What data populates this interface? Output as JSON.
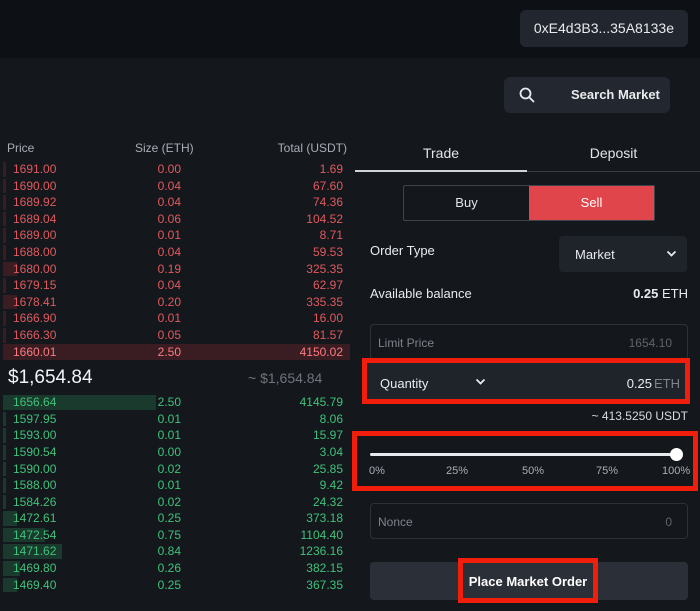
{
  "header": {
    "wallet_address": "0xE4d3B3...35A8133e"
  },
  "search": {
    "label": "Search Market",
    "icon": "search-icon"
  },
  "orderbook": {
    "columns": {
      "price": "Price",
      "size": "Size (ETH)",
      "total": "Total (USDT)"
    },
    "asks": [
      {
        "price": "1691.00",
        "size": "0.00",
        "total": "1.69",
        "depth": 0.01
      },
      {
        "price": "1690.00",
        "size": "0.04",
        "total": "67.60",
        "depth": 0.01
      },
      {
        "price": "1689.92",
        "size": "0.04",
        "total": "74.36",
        "depth": 0.01
      },
      {
        "price": "1689.04",
        "size": "0.06",
        "total": "104.52",
        "depth": 0.01
      },
      {
        "price": "1689.00",
        "size": "0.01",
        "total": "8.71",
        "depth": 0.01
      },
      {
        "price": "1688.00",
        "size": "0.04",
        "total": "59.53",
        "depth": 0.01
      },
      {
        "price": "1680.00",
        "size": "0.19",
        "total": "325.35",
        "depth": 0.04
      },
      {
        "price": "1679.15",
        "size": "0.04",
        "total": "62.97",
        "depth": 0.01
      },
      {
        "price": "1678.41",
        "size": "0.20",
        "total": "335.35",
        "depth": 0.04
      },
      {
        "price": "1666.90",
        "size": "0.01",
        "total": "16.00",
        "depth": 0.01
      },
      {
        "price": "1666.30",
        "size": "0.05",
        "total": "81.57",
        "depth": 0.01
      },
      {
        "price": "1660.01",
        "size": "2.50",
        "total": "4150.02",
        "depth": 0.8
      }
    ],
    "mid_price": "$1,654.84",
    "mid_price_secondary": "~ $1,654.84",
    "bids": [
      {
        "price": "1656.64",
        "size": "2.50",
        "total": "4145.79",
        "depth": 0.44
      },
      {
        "price": "1597.95",
        "size": "0.01",
        "total": "8.06",
        "depth": 0.005
      },
      {
        "price": "1593.00",
        "size": "0.01",
        "total": "15.97",
        "depth": 0.005
      },
      {
        "price": "1590.54",
        "size": "0.00",
        "total": "3.04",
        "depth": 0.005
      },
      {
        "price": "1590.00",
        "size": "0.02",
        "total": "25.85",
        "depth": 0.005
      },
      {
        "price": "1588.00",
        "size": "0.01",
        "total": "9.42",
        "depth": 0.005
      },
      {
        "price": "1584.26",
        "size": "0.02",
        "total": "24.32",
        "depth": 0.005
      },
      {
        "price": "1472.61",
        "size": "0.25",
        "total": "373.18",
        "depth": 0.04
      },
      {
        "price": "1472.54",
        "size": "0.75",
        "total": "1104.40",
        "depth": 0.12
      },
      {
        "price": "1471.62",
        "size": "0.84",
        "total": "1236.16",
        "depth": 0.17
      },
      {
        "price": "1469.80",
        "size": "0.26",
        "total": "382.15",
        "depth": 0.05
      },
      {
        "price": "1469.40",
        "size": "0.25",
        "total": "367.35",
        "depth": 0.04
      }
    ]
  },
  "panel": {
    "tabs": [
      "Trade",
      "Deposit"
    ],
    "buy_label": "Buy",
    "sell_label": "Sell",
    "order_type_label": "Order Type",
    "order_type_value": "Market",
    "available_balance_label": "Available balance",
    "available_balance_value": "0.25",
    "available_balance_unit": "ETH",
    "limit_price_label": "Limit Price",
    "limit_price_value": "1654.10",
    "quantity_label": "Quantity",
    "quantity_value": "0.25",
    "quantity_unit": "ETH",
    "usdt_estimate": "~ 413.5250 USDT",
    "slider_value": 1.0,
    "slider_ticks": [
      "0%",
      "25%",
      "50%",
      "75%",
      "100%"
    ],
    "nonce_label": "Nonce",
    "nonce_value": "0",
    "place_order_label": "Place Market Order"
  },
  "colors": {
    "ask": "#e05a5e",
    "bid": "#3ec27a",
    "sell_button": "#e0454c",
    "highlight_box": "#f21e0c"
  }
}
